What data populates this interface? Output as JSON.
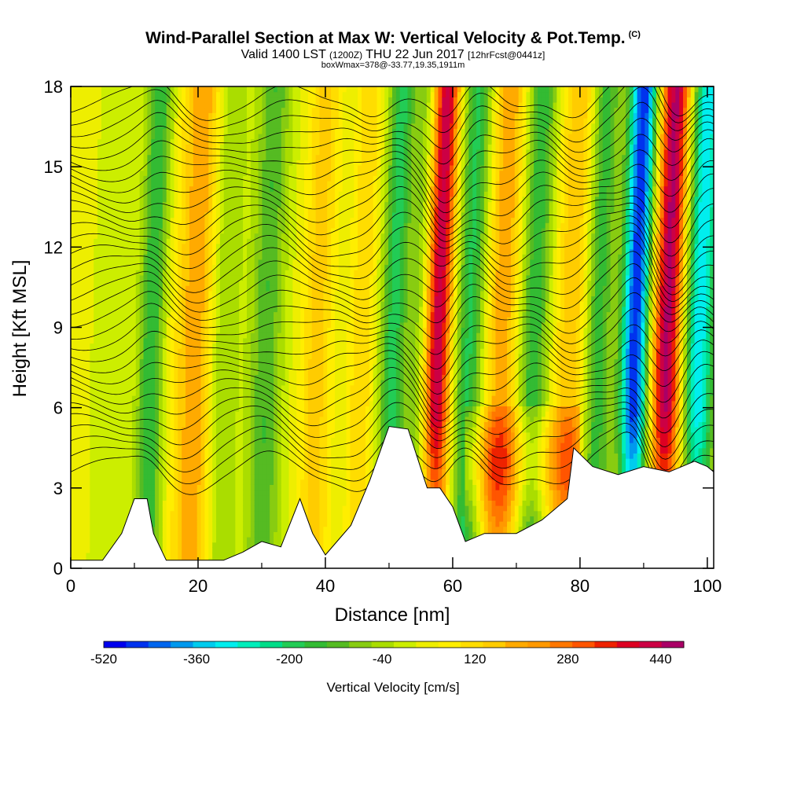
{
  "header": {
    "title": "Wind-Parallel Section at Max W: Vertical Velocity & Pot.Temp.",
    "copyright": "(C)",
    "subtitle_main": "Valid 1400 LST",
    "subtitle_utc": "(1200Z)",
    "subtitle_date": "THU 22 Jun 2017",
    "subtitle_fcst": "[12hrFcst@0441z]",
    "info": "boxWmax=378@-33.77,19.35,1911m"
  },
  "chart_data": {
    "type": "heatmap",
    "xlabel": "Distance [nm]",
    "ylabel": "Height [Kft MSL]",
    "xlim": [
      0,
      101
    ],
    "ylim": [
      0,
      18
    ],
    "x_ticks": [
      "0",
      "20",
      "40",
      "60",
      "80",
      "100"
    ],
    "x_tick_values": [
      0,
      20,
      40,
      60,
      80,
      100
    ],
    "y_ticks": [
      "0",
      "3",
      "6",
      "9",
      "12",
      "15",
      "18"
    ],
    "y_tick_values": [
      0,
      3,
      6,
      9,
      12,
      15,
      18
    ],
    "colorbar": {
      "title": "Vertical Velocity [cm/s]",
      "labels": [
        "-520",
        "-360",
        "-200",
        "-40",
        "120",
        "280",
        "440"
      ],
      "label_values": [
        -520,
        -360,
        -200,
        -40,
        120,
        280,
        440
      ],
      "range": [
        -520,
        480
      ],
      "step": 40,
      "colors": [
        "#0000ee",
        "#0033ee",
        "#0066ee",
        "#0099ee",
        "#00ccee",
        "#00eeee",
        "#00eebb",
        "#00dd88",
        "#22cc55",
        "#33bb33",
        "#55bb22",
        "#88cc11",
        "#aadd00",
        "#ccee00",
        "#eeee00",
        "#ffee00",
        "#ffdd00",
        "#ffcc00",
        "#ffaa00",
        "#ff9900",
        "#ff7700",
        "#ff5500",
        "#ee2200",
        "#dd0022",
        "#cc0044",
        "#aa0066"
      ]
    },
    "terrain_kft": [
      [
        0,
        0.3
      ],
      [
        5,
        0.3
      ],
      [
        8,
        1.3
      ],
      [
        10,
        2.6
      ],
      [
        12,
        2.6
      ],
      [
        13,
        1.3
      ],
      [
        15,
        0.3
      ],
      [
        24,
        0.3
      ],
      [
        27,
        0.6
      ],
      [
        30,
        1.0
      ],
      [
        33,
        0.8
      ],
      [
        36,
        2.6
      ],
      [
        38,
        1.3
      ],
      [
        40,
        0.5
      ],
      [
        44,
        1.6
      ],
      [
        47,
        3.3
      ],
      [
        50,
        5.3
      ],
      [
        53,
        5.2
      ],
      [
        56,
        3.0
      ],
      [
        58,
        3.0
      ],
      [
        60,
        2.3
      ],
      [
        62,
        1.0
      ],
      [
        65,
        1.3
      ],
      [
        70,
        1.3
      ],
      [
        74,
        1.8
      ],
      [
        78,
        2.6
      ],
      [
        79,
        4.5
      ],
      [
        82,
        3.8
      ],
      [
        86,
        3.5
      ],
      [
        90,
        3.8
      ],
      [
        94,
        3.6
      ],
      [
        98,
        4.0
      ],
      [
        100,
        3.8
      ],
      [
        101,
        3.6
      ]
    ],
    "features": [
      {
        "x": 12,
        "width": 2.0,
        "value": -200
      },
      {
        "x": 19,
        "width": 3.5,
        "value": 200
      },
      {
        "x": 23,
        "width": 2.5,
        "value": -120
      },
      {
        "x": 30,
        "width": 2.5,
        "value": -160
      },
      {
        "x": 38,
        "width": 2.5,
        "value": 140
      },
      {
        "x": 45,
        "width": 2.0,
        "value": 120
      },
      {
        "x": 50,
        "width": 2.0,
        "value": -220
      },
      {
        "x": 54,
        "width": 1.8,
        "value": -120
      },
      {
        "x": 57,
        "width": 2.2,
        "value": 440
      },
      {
        "x": 62,
        "width": 2.5,
        "value": -220
      },
      {
        "x": 67,
        "width": 3.0,
        "value": 200
      },
      {
        "x": 72,
        "width": 2.5,
        "value": -200
      },
      {
        "x": 78,
        "width": 3.0,
        "value": 160
      },
      {
        "x": 82,
        "width": 2.2,
        "value": -200
      },
      {
        "x": 88,
        "width": 2.2,
        "value": -520
      },
      {
        "x": 93,
        "width": 2.5,
        "value": 460
      },
      {
        "x": 98,
        "width": 2.5,
        "value": -360
      }
    ]
  }
}
